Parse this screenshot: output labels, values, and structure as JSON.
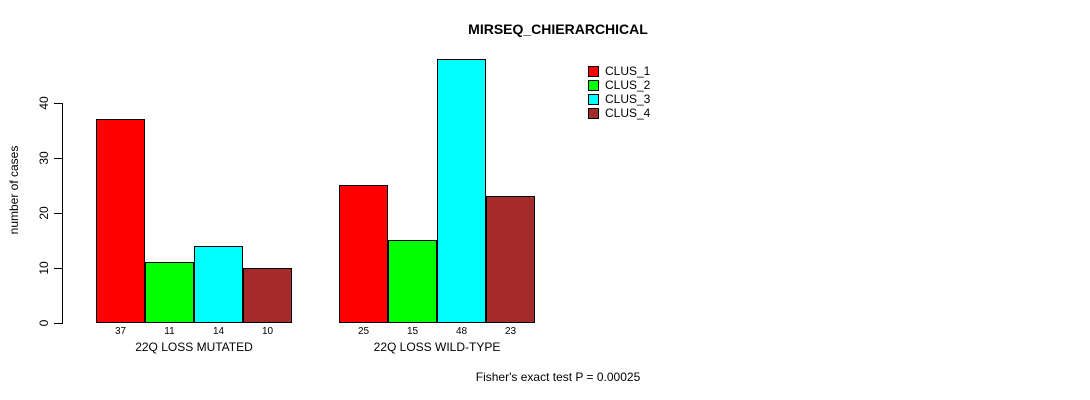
{
  "chart_data": {
    "type": "bar",
    "title": "MIRSEQ_CHIERARCHICAL",
    "xlabel": "",
    "ylabel": "number of cases",
    "ylim": [
      0,
      40
    ],
    "yticks": [
      0,
      10,
      20,
      30,
      40
    ],
    "grid": false,
    "legend_position": "top-right",
    "show_value_labels": true,
    "categories": [
      "22Q LOSS MUTATED",
      "22Q LOSS WILD-TYPE"
    ],
    "series": [
      {
        "name": "CLUS_1",
        "color": "#ff0000"
      },
      {
        "name": "CLUS_2",
        "color": "#00ff00"
      },
      {
        "name": "CLUS_3",
        "color": "#00ffff"
      },
      {
        "name": "CLUS_4",
        "color": "#a52a2a"
      }
    ],
    "groups": [
      {
        "label": "22Q LOSS MUTATED",
        "values": [
          37,
          11,
          14,
          10
        ]
      },
      {
        "label": "22Q LOSS WILD-TYPE",
        "values": [
          25,
          15,
          48,
          23
        ]
      }
    ],
    "annotation": "Fisher's exact test P = 0.00025"
  }
}
